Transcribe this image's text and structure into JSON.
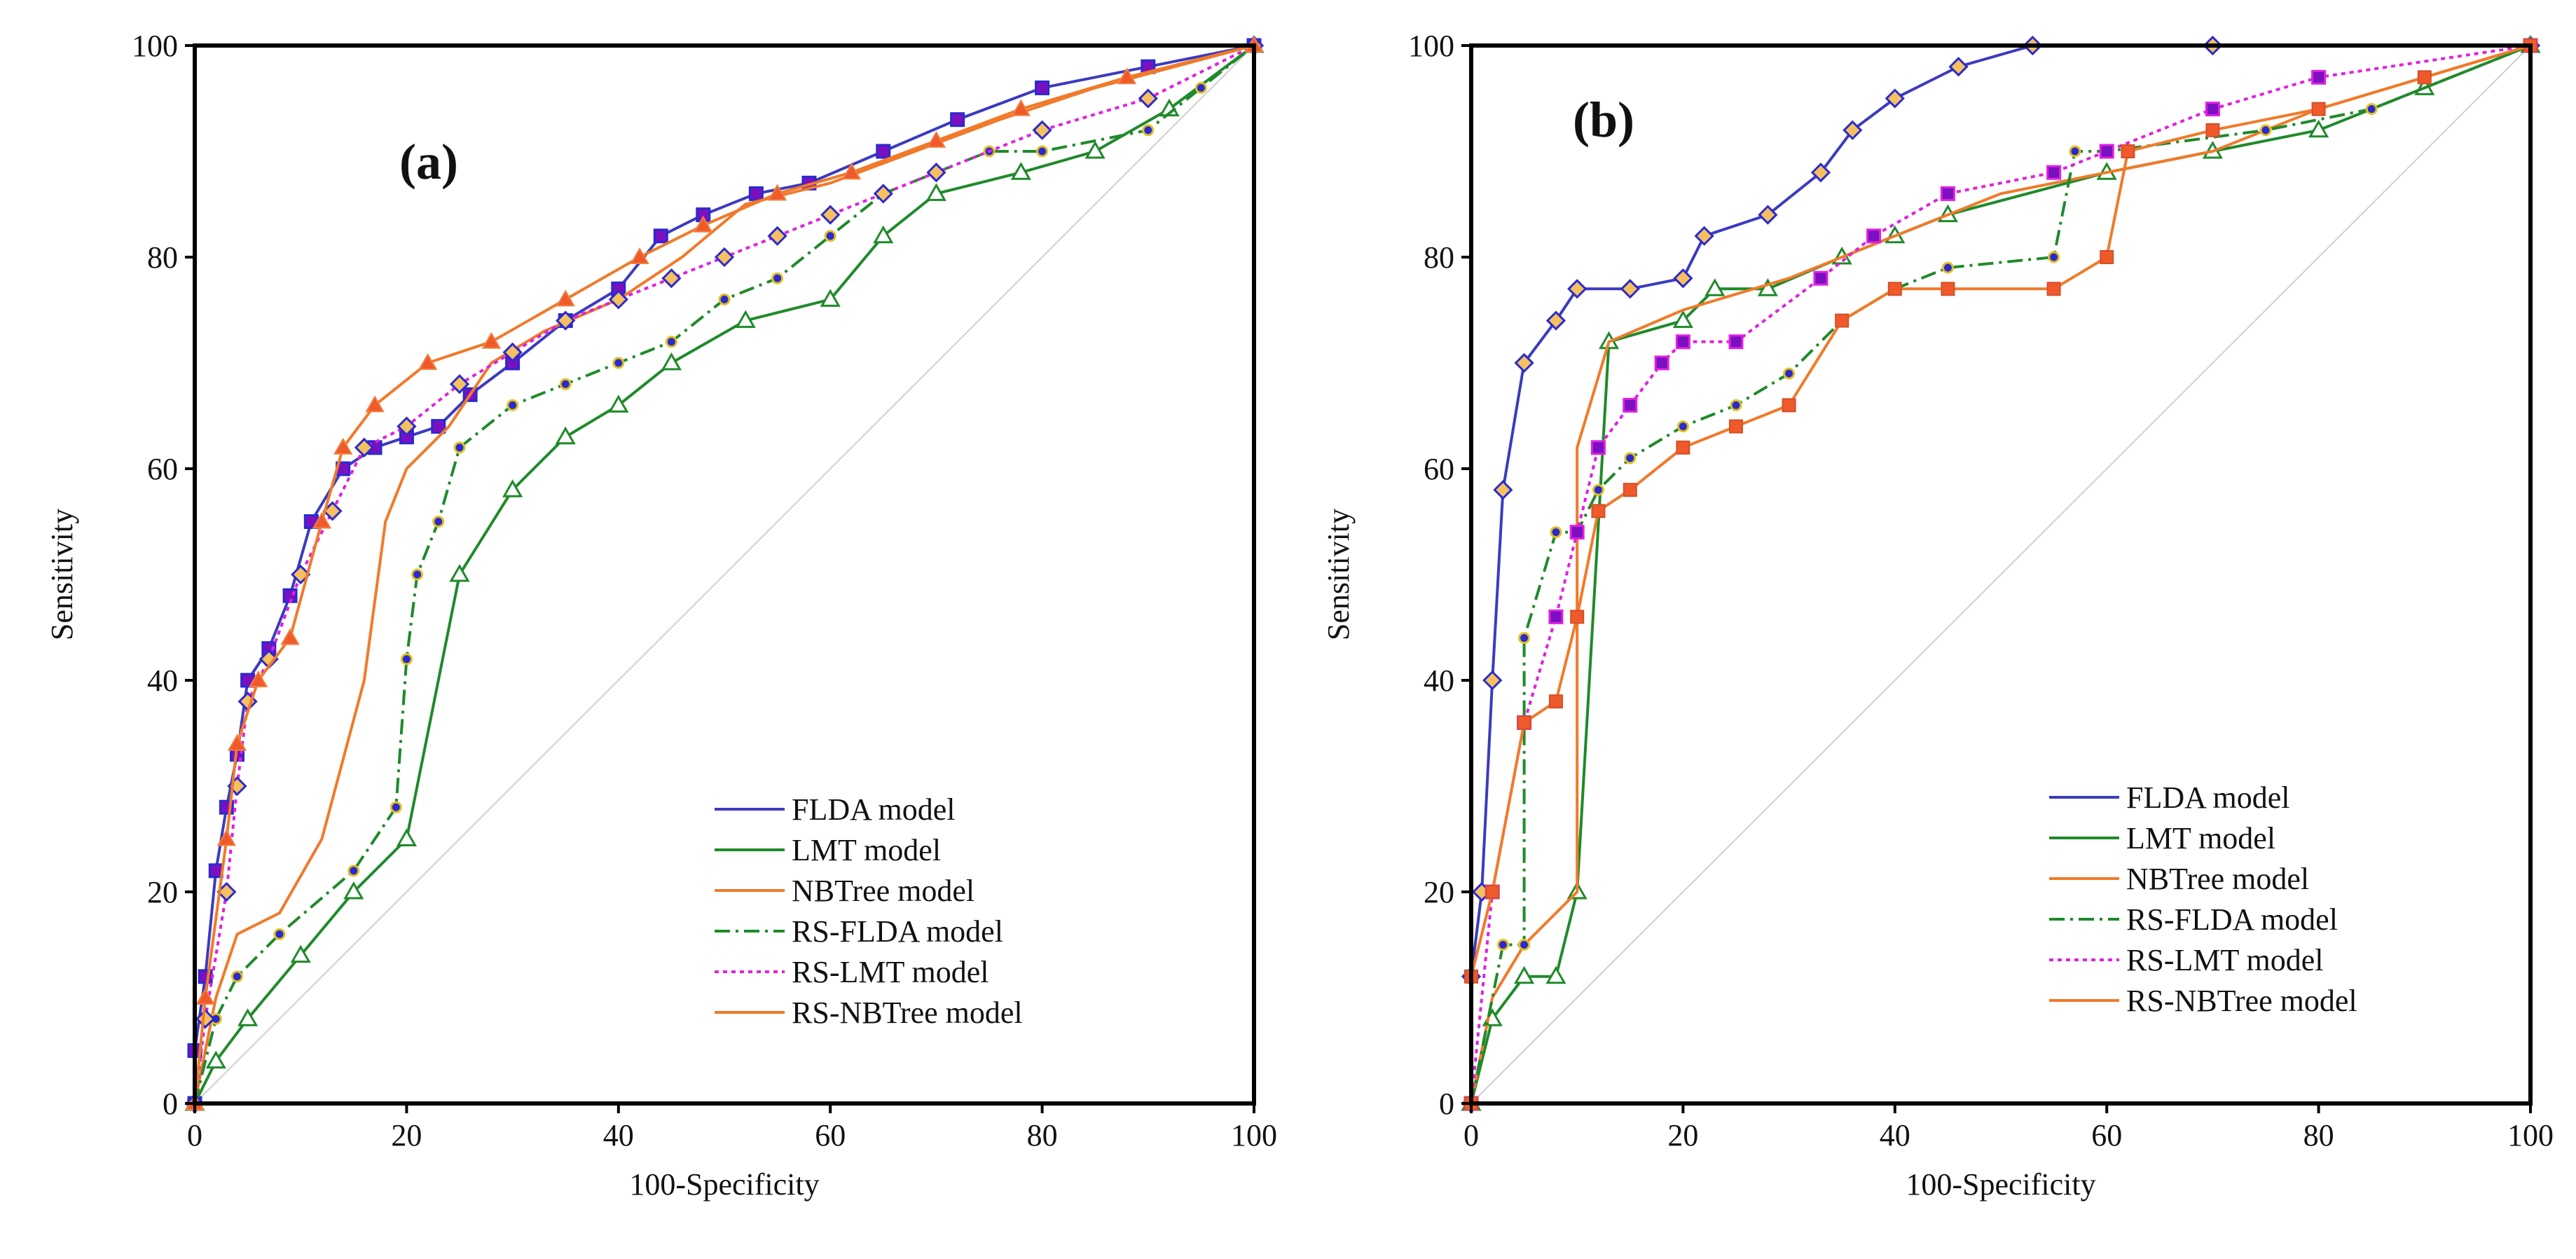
{
  "colors": {
    "FLDA model": "#3b3bbf",
    "LMT model": "#1f8a2a",
    "NBTree model": "#f07a2a",
    "RS-FLDA model": "#1f8a2a",
    "RS-LMT model": "#e020e0",
    "RS-NBTree model": "#f07a2a",
    "reference": "#cfcfcf",
    "marker_fill_blue": "#2a2ad0",
    "marker_fill_red": "#f05a2a",
    "marker_fill_orange": "#f5c060",
    "marker_fill_purple": "#7a10c0"
  },
  "chart_data": [
    {
      "type": "line",
      "panel_label": "(a)",
      "xlabel": "100-Specificity",
      "ylabel": "Sensitivity",
      "xlim": [
        0,
        100
      ],
      "ylim": [
        0,
        100
      ],
      "xticks": [
        0,
        20,
        40,
        60,
        80,
        100
      ],
      "yticks": [
        0,
        20,
        40,
        60,
        80,
        100
      ],
      "legend_position": "bottom-right",
      "legend": [
        "FLDA model",
        "LMT model",
        "NBTree model",
        "RS-FLDA model",
        "RS-LMT model",
        "RS-NBTree model"
      ],
      "reference_line": "diagonal",
      "series": [
        {
          "name": "FLDA model",
          "style": "solid",
          "marker": "square",
          "values": [
            [
              0,
              0
            ],
            [
              0,
              5
            ],
            [
              1,
              12
            ],
            [
              2,
              22
            ],
            [
              3,
              28
            ],
            [
              4,
              33
            ],
            [
              5,
              40
            ],
            [
              7,
              43
            ],
            [
              9,
              48
            ],
            [
              11,
              55
            ],
            [
              14,
              60
            ],
            [
              17,
              62
            ],
            [
              20,
              63
            ],
            [
              23,
              64
            ],
            [
              26,
              67
            ],
            [
              30,
              70
            ],
            [
              35,
              74
            ],
            [
              40,
              77
            ],
            [
              44,
              82
            ],
            [
              48,
              84
            ],
            [
              53,
              86
            ],
            [
              58,
              87
            ],
            [
              65,
              90
            ],
            [
              72,
              93
            ],
            [
              80,
              96
            ],
            [
              90,
              98
            ],
            [
              100,
              100
            ]
          ]
        },
        {
          "name": "LMT model",
          "style": "solid",
          "marker": "triangle-open",
          "values": [
            [
              0,
              0
            ],
            [
              2,
              4
            ],
            [
              5,
              8
            ],
            [
              10,
              14
            ],
            [
              15,
              20
            ],
            [
              20,
              25
            ],
            [
              25,
              50
            ],
            [
              30,
              58
            ],
            [
              35,
              63
            ],
            [
              40,
              66
            ],
            [
              45,
              70
            ],
            [
              52,
              74
            ],
            [
              60,
              76
            ],
            [
              65,
              82
            ],
            [
              70,
              86
            ],
            [
              78,
              88
            ],
            [
              85,
              90
            ],
            [
              92,
              94
            ],
            [
              100,
              100
            ]
          ]
        },
        {
          "name": "NBTree model",
          "style": "solid",
          "marker": "none",
          "values": [
            [
              0,
              0
            ],
            [
              2,
              10
            ],
            [
              4,
              16
            ],
            [
              8,
              18
            ],
            [
              12,
              25
            ],
            [
              16,
              40
            ],
            [
              18,
              55
            ],
            [
              20,
              60
            ],
            [
              24,
              64
            ],
            [
              28,
              70
            ],
            [
              33,
              73
            ],
            [
              40,
              76
            ],
            [
              46,
              80
            ],
            [
              52,
              85
            ],
            [
              60,
              87
            ],
            [
              68,
              90
            ],
            [
              76,
              93
            ],
            [
              85,
              96
            ],
            [
              100,
              100
            ]
          ]
        },
        {
          "name": "RS-FLDA model",
          "style": "dashdot",
          "marker": "circle",
          "values": [
            [
              0,
              0
            ],
            [
              2,
              8
            ],
            [
              4,
              12
            ],
            [
              8,
              16
            ],
            [
              15,
              22
            ],
            [
              19,
              28
            ],
            [
              20,
              42
            ],
            [
              21,
              50
            ],
            [
              23,
              55
            ],
            [
              25,
              62
            ],
            [
              30,
              66
            ],
            [
              35,
              68
            ],
            [
              40,
              70
            ],
            [
              45,
              72
            ],
            [
              50,
              76
            ],
            [
              55,
              78
            ],
            [
              60,
              82
            ],
            [
              65,
              86
            ],
            [
              70,
              88
            ],
            [
              75,
              90
            ],
            [
              80,
              90
            ],
            [
              90,
              92
            ],
            [
              95,
              96
            ],
            [
              100,
              100
            ]
          ]
        },
        {
          "name": "RS-LMT model",
          "style": "dotted",
          "marker": "diamond",
          "values": [
            [
              0,
              0
            ],
            [
              1,
              8
            ],
            [
              3,
              20
            ],
            [
              4,
              30
            ],
            [
              5,
              38
            ],
            [
              7,
              42
            ],
            [
              10,
              50
            ],
            [
              13,
              56
            ],
            [
              16,
              62
            ],
            [
              20,
              64
            ],
            [
              25,
              68
            ],
            [
              30,
              71
            ],
            [
              35,
              74
            ],
            [
              40,
              76
            ],
            [
              45,
              78
            ],
            [
              50,
              80
            ],
            [
              55,
              82
            ],
            [
              60,
              84
            ],
            [
              65,
              86
            ],
            [
              70,
              88
            ],
            [
              80,
              92
            ],
            [
              90,
              95
            ],
            [
              100,
              100
            ]
          ]
        },
        {
          "name": "RS-NBTree model",
          "style": "solid",
          "marker": "triangle",
          "values": [
            [
              0,
              0
            ],
            [
              1,
              10
            ],
            [
              3,
              25
            ],
            [
              4,
              34
            ],
            [
              6,
              40
            ],
            [
              9,
              44
            ],
            [
              12,
              55
            ],
            [
              14,
              62
            ],
            [
              17,
              66
            ],
            [
              22,
              70
            ],
            [
              28,
              72
            ],
            [
              35,
              76
            ],
            [
              42,
              80
            ],
            [
              48,
              83
            ],
            [
              55,
              86
            ],
            [
              62,
              88
            ],
            [
              70,
              91
            ],
            [
              78,
              94
            ],
            [
              88,
              97
            ],
            [
              100,
              100
            ]
          ]
        }
      ]
    },
    {
      "type": "line",
      "panel_label": "(b)",
      "xlabel": "100-Specificity",
      "ylabel": "Sensitivity",
      "xlim": [
        0,
        100
      ],
      "ylim": [
        0,
        100
      ],
      "xticks": [
        0,
        20,
        40,
        60,
        80,
        100
      ],
      "yticks": [
        0,
        20,
        40,
        60,
        80,
        100
      ],
      "legend_position": "bottom-right",
      "legend": [
        "FLDA model",
        "LMT model",
        "NBTree model",
        "RS-FLDA model",
        "RS-LMT model",
        "RS-NBTree model"
      ],
      "reference_line": "diagonal",
      "series": [
        {
          "name": "FLDA model",
          "style": "solid",
          "marker": "diamond",
          "values": [
            [
              0,
              0
            ],
            [
              0,
              12
            ],
            [
              1,
              20
            ],
            [
              2,
              40
            ],
            [
              3,
              58
            ],
            [
              5,
              70
            ],
            [
              8,
              74
            ],
            [
              10,
              77
            ],
            [
              15,
              77
            ],
            [
              20,
              78
            ],
            [
              22,
              82
            ],
            [
              28,
              84
            ],
            [
              33,
              88
            ],
            [
              36,
              92
            ],
            [
              40,
              95
            ],
            [
              46,
              98
            ],
            [
              53,
              100
            ],
            [
              70,
              100
            ],
            [
              100,
              100
            ]
          ]
        },
        {
          "name": "LMT model",
          "style": "solid",
          "marker": "triangle-open",
          "values": [
            [
              0,
              0
            ],
            [
              2,
              8
            ],
            [
              5,
              12
            ],
            [
              8,
              12
            ],
            [
              10,
              20
            ],
            [
              13,
              72
            ],
            [
              20,
              74
            ],
            [
              23,
              77
            ],
            [
              28,
              77
            ],
            [
              35,
              80
            ],
            [
              40,
              82
            ],
            [
              45,
              84
            ],
            [
              60,
              88
            ],
            [
              70,
              90
            ],
            [
              80,
              92
            ],
            [
              90,
              96
            ],
            [
              100,
              100
            ]
          ]
        },
        {
          "name": "NBTree model",
          "style": "solid",
          "marker": "none",
          "values": [
            [
              0,
              0
            ],
            [
              2,
              10
            ],
            [
              5,
              15
            ],
            [
              10,
              20
            ],
            [
              10,
              62
            ],
            [
              13,
              72
            ],
            [
              20,
              75
            ],
            [
              30,
              78
            ],
            [
              40,
              82
            ],
            [
              50,
              86
            ],
            [
              60,
              88
            ],
            [
              70,
              90
            ],
            [
              80,
              94
            ],
            [
              90,
              97
            ],
            [
              100,
              100
            ]
          ]
        },
        {
          "name": "RS-FLDA model",
          "style": "dashdot",
          "marker": "circle",
          "values": [
            [
              0,
              0
            ],
            [
              3,
              15
            ],
            [
              5,
              15
            ],
            [
              5,
              44
            ],
            [
              8,
              54
            ],
            [
              10,
              54
            ],
            [
              12,
              58
            ],
            [
              15,
              61
            ],
            [
              20,
              64
            ],
            [
              25,
              66
            ],
            [
              30,
              69
            ],
            [
              35,
              74
            ],
            [
              40,
              77
            ],
            [
              45,
              79
            ],
            [
              55,
              80
            ],
            [
              57,
              90
            ],
            [
              60,
              90
            ],
            [
              75,
              92
            ],
            [
              85,
              94
            ],
            [
              100,
              100
            ]
          ]
        },
        {
          "name": "RS-LMT model",
          "style": "dotted",
          "marker": "square-purple",
          "values": [
            [
              0,
              0
            ],
            [
              2,
              20
            ],
            [
              5,
              36
            ],
            [
              8,
              46
            ],
            [
              10,
              54
            ],
            [
              12,
              62
            ],
            [
              15,
              66
            ],
            [
              18,
              70
            ],
            [
              20,
              72
            ],
            [
              25,
              72
            ],
            [
              33,
              78
            ],
            [
              38,
              82
            ],
            [
              45,
              86
            ],
            [
              55,
              88
            ],
            [
              60,
              90
            ],
            [
              70,
              94
            ],
            [
              80,
              97
            ],
            [
              100,
              100
            ]
          ]
        },
        {
          "name": "RS-NBTree model",
          "style": "solid",
          "marker": "square-red",
          "values": [
            [
              0,
              0
            ],
            [
              0,
              12
            ],
            [
              2,
              20
            ],
            [
              5,
              36
            ],
            [
              8,
              38
            ],
            [
              10,
              46
            ],
            [
              12,
              56
            ],
            [
              15,
              58
            ],
            [
              20,
              62
            ],
            [
              25,
              64
            ],
            [
              30,
              66
            ],
            [
              35,
              74
            ],
            [
              40,
              77
            ],
            [
              45,
              77
            ],
            [
              55,
              77
            ],
            [
              60,
              80
            ],
            [
              62,
              90
            ],
            [
              70,
              92
            ],
            [
              80,
              94
            ],
            [
              90,
              97
            ],
            [
              100,
              100
            ]
          ]
        }
      ]
    }
  ]
}
